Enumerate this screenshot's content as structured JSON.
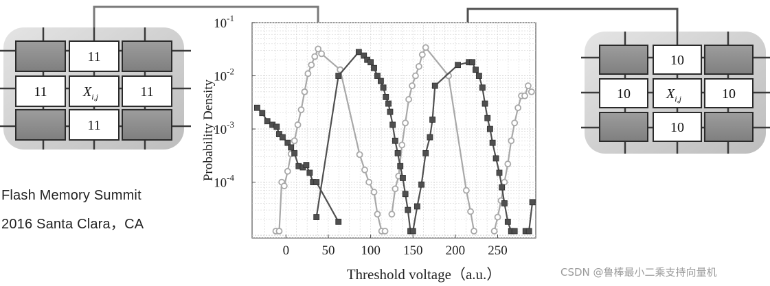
{
  "caption": {
    "line1": "Flash Memory Summit",
    "line2": "2016 Santa Clara，CA"
  },
  "watermark": "CSDN @鲁棒最小二乘支持向量机",
  "cell_grid_left": {
    "top": "11",
    "left": "11",
    "center": "X",
    "center_sub": "i,j",
    "right": "11",
    "bottom": "11"
  },
  "cell_grid_right": {
    "top": "10",
    "left": "10",
    "center": "X",
    "center_sub": "i,j",
    "right": "10",
    "bottom": "10"
  },
  "colors": {
    "light_series": "#a8a8a8",
    "dark_series": "#4f4f4f",
    "grid_panel": "#d0d0d0",
    "gray_cell": "#8e8e8e"
  },
  "chart_data": {
    "type": "line",
    "title": "",
    "xlabel": "Threshold voltage（a.u.）",
    "ylabel": "Probability Density",
    "y_scale": "log",
    "xlim": [
      -40,
      295
    ],
    "ylim_log10": [
      -5.05,
      -1
    ],
    "x_ticks": [
      "0",
      "50",
      "100",
      "150",
      "200",
      "250"
    ],
    "x_tick_values": [
      0,
      50,
      100,
      150,
      200,
      250
    ],
    "y_ticks": [
      {
        "base": "10",
        "exp": "-1",
        "log": -1
      },
      {
        "base": "10",
        "exp": "-2",
        "log": -2
      },
      {
        "base": "10",
        "exp": "-3",
        "log": -3
      },
      {
        "base": "10",
        "exp": "-4",
        "log": -4
      }
    ],
    "grid": true,
    "series": [
      {
        "style": "light-circle",
        "points": [
          [
            -12,
            1.2e-05
          ],
          [
            -8,
            1.2e-05
          ],
          [
            -5,
            0.0001
          ],
          [
            -2,
            8.5e-05
          ],
          [
            2,
            0.00016
          ],
          [
            6,
            0.00034
          ],
          [
            10,
            0.0006
          ],
          [
            14,
            0.0012
          ],
          [
            18,
            0.0023
          ],
          [
            22,
            0.005
          ],
          [
            26,
            0.011
          ],
          [
            30,
            0.016
          ],
          [
            34,
            0.023
          ],
          [
            38,
            0.032
          ],
          [
            42,
            0.026
          ],
          [
            64,
            0.013
          ]
        ]
      },
      {
        "style": "light-circle",
        "points": [
          [
            64,
            0.013
          ],
          [
            87,
            0.00033
          ],
          [
            93,
            0.00017
          ],
          [
            98,
            0.0001
          ],
          [
            104,
            6.5e-05
          ],
          [
            108,
            2.5e-05
          ],
          [
            113,
            1.2e-05
          ],
          [
            117,
            1.2e-05
          ]
        ]
      },
      {
        "style": "light-circle",
        "points": [
          [
            125,
            2.5e-05
          ],
          [
            129,
            7.5e-05
          ],
          [
            133,
            0.00013
          ],
          [
            137,
            0.0005
          ],
          [
            141,
            0.0013
          ],
          [
            145,
            0.0036
          ],
          [
            149,
            0.0065
          ],
          [
            153,
            0.01
          ],
          [
            157,
            0.015
          ],
          [
            161,
            0.025
          ],
          [
            165,
            0.034
          ],
          [
            192,
            0.01
          ]
        ]
      },
      {
        "style": "light-circle",
        "points": [
          [
            192,
            0.01
          ],
          [
            213,
            7e-05
          ],
          [
            218,
            2.8e-05
          ],
          [
            222,
            1.2e-05
          ]
        ]
      },
      {
        "style": "light-circle",
        "points": [
          [
            246,
            1.2e-05
          ],
          [
            250,
            2.2e-05
          ],
          [
            254,
            4.5e-05
          ],
          [
            258,
            0.0001
          ],
          [
            262,
            0.00022
          ],
          [
            266,
            0.0006
          ],
          [
            270,
            0.0013
          ],
          [
            274,
            0.0025
          ],
          [
            278,
            0.0042
          ],
          [
            282,
            0.0042
          ],
          [
            286,
            0.0065
          ],
          [
            290,
            0.005
          ]
        ]
      },
      {
        "style": "dark-square",
        "points": [
          [
            -34,
            0.0025
          ],
          [
            -28,
            0.002
          ],
          [
            -22,
            0.0014
          ],
          [
            -16,
            0.0012
          ],
          [
            -11,
            0.0011
          ],
          [
            -8,
            0.0008
          ],
          [
            -4,
            0.0007
          ],
          [
            2,
            0.00055
          ],
          [
            6,
            0.00045
          ],
          [
            10,
            0.00035
          ],
          [
            15,
            0.0002
          ],
          [
            20,
            0.00019
          ],
          [
            24,
            0.00021
          ],
          [
            28,
            0.00015
          ],
          [
            32,
            0.0001
          ],
          [
            36,
            0.0001
          ],
          [
            62,
            1.8e-05
          ]
        ]
      },
      {
        "style": "dark-square",
        "points": [
          [
            36,
            2.2e-05
          ],
          [
            62,
            0.01
          ],
          [
            86,
            0.028
          ],
          [
            92,
            0.024
          ],
          [
            96,
            0.02
          ],
          [
            100,
            0.018
          ],
          [
            104,
            0.014
          ],
          [
            108,
            0.01
          ],
          [
            112,
            0.008
          ],
          [
            115,
            0.006
          ],
          [
            118,
            0.004
          ],
          [
            121,
            0.003
          ],
          [
            123,
            0.0021
          ],
          [
            126,
            0.0012
          ],
          [
            129,
            0.0006
          ],
          [
            132,
            0.00035
          ],
          [
            135,
            0.0002
          ],
          [
            138,
            0.00012
          ],
          [
            141,
            6e-05
          ],
          [
            144,
            3e-05
          ],
          [
            147,
            1.2e-05
          ]
        ]
      },
      {
        "style": "dark-square",
        "points": [
          [
            150,
            1.2e-05
          ],
          [
            155,
            3.5e-05
          ],
          [
            160,
            9e-05
          ],
          [
            165,
            0.00035
          ],
          [
            170,
            0.0007
          ],
          [
            173,
            0.0015
          ],
          [
            176,
            0.0065
          ],
          [
            203,
            0.016
          ],
          [
            216,
            0.018
          ],
          [
            220,
            0.018
          ],
          [
            224,
            0.013
          ],
          [
            228,
            0.01
          ],
          [
            232,
            0.006
          ],
          [
            235,
            0.003
          ],
          [
            238,
            0.0016
          ],
          [
            241,
            0.001
          ],
          [
            244,
            0.00055
          ],
          [
            248,
            0.00028
          ],
          [
            252,
            0.00015
          ],
          [
            255,
            8e-05
          ],
          [
            258,
            4e-05
          ],
          [
            262,
            1.8e-05
          ],
          [
            266,
            1.2e-05
          ],
          [
            270,
            1.2e-05
          ]
        ]
      },
      {
        "style": "dark-square",
        "points": [
          [
            283,
            1.2e-05
          ],
          [
            287,
            1.2e-05
          ],
          [
            291,
            4.2e-05
          ]
        ]
      }
    ]
  }
}
